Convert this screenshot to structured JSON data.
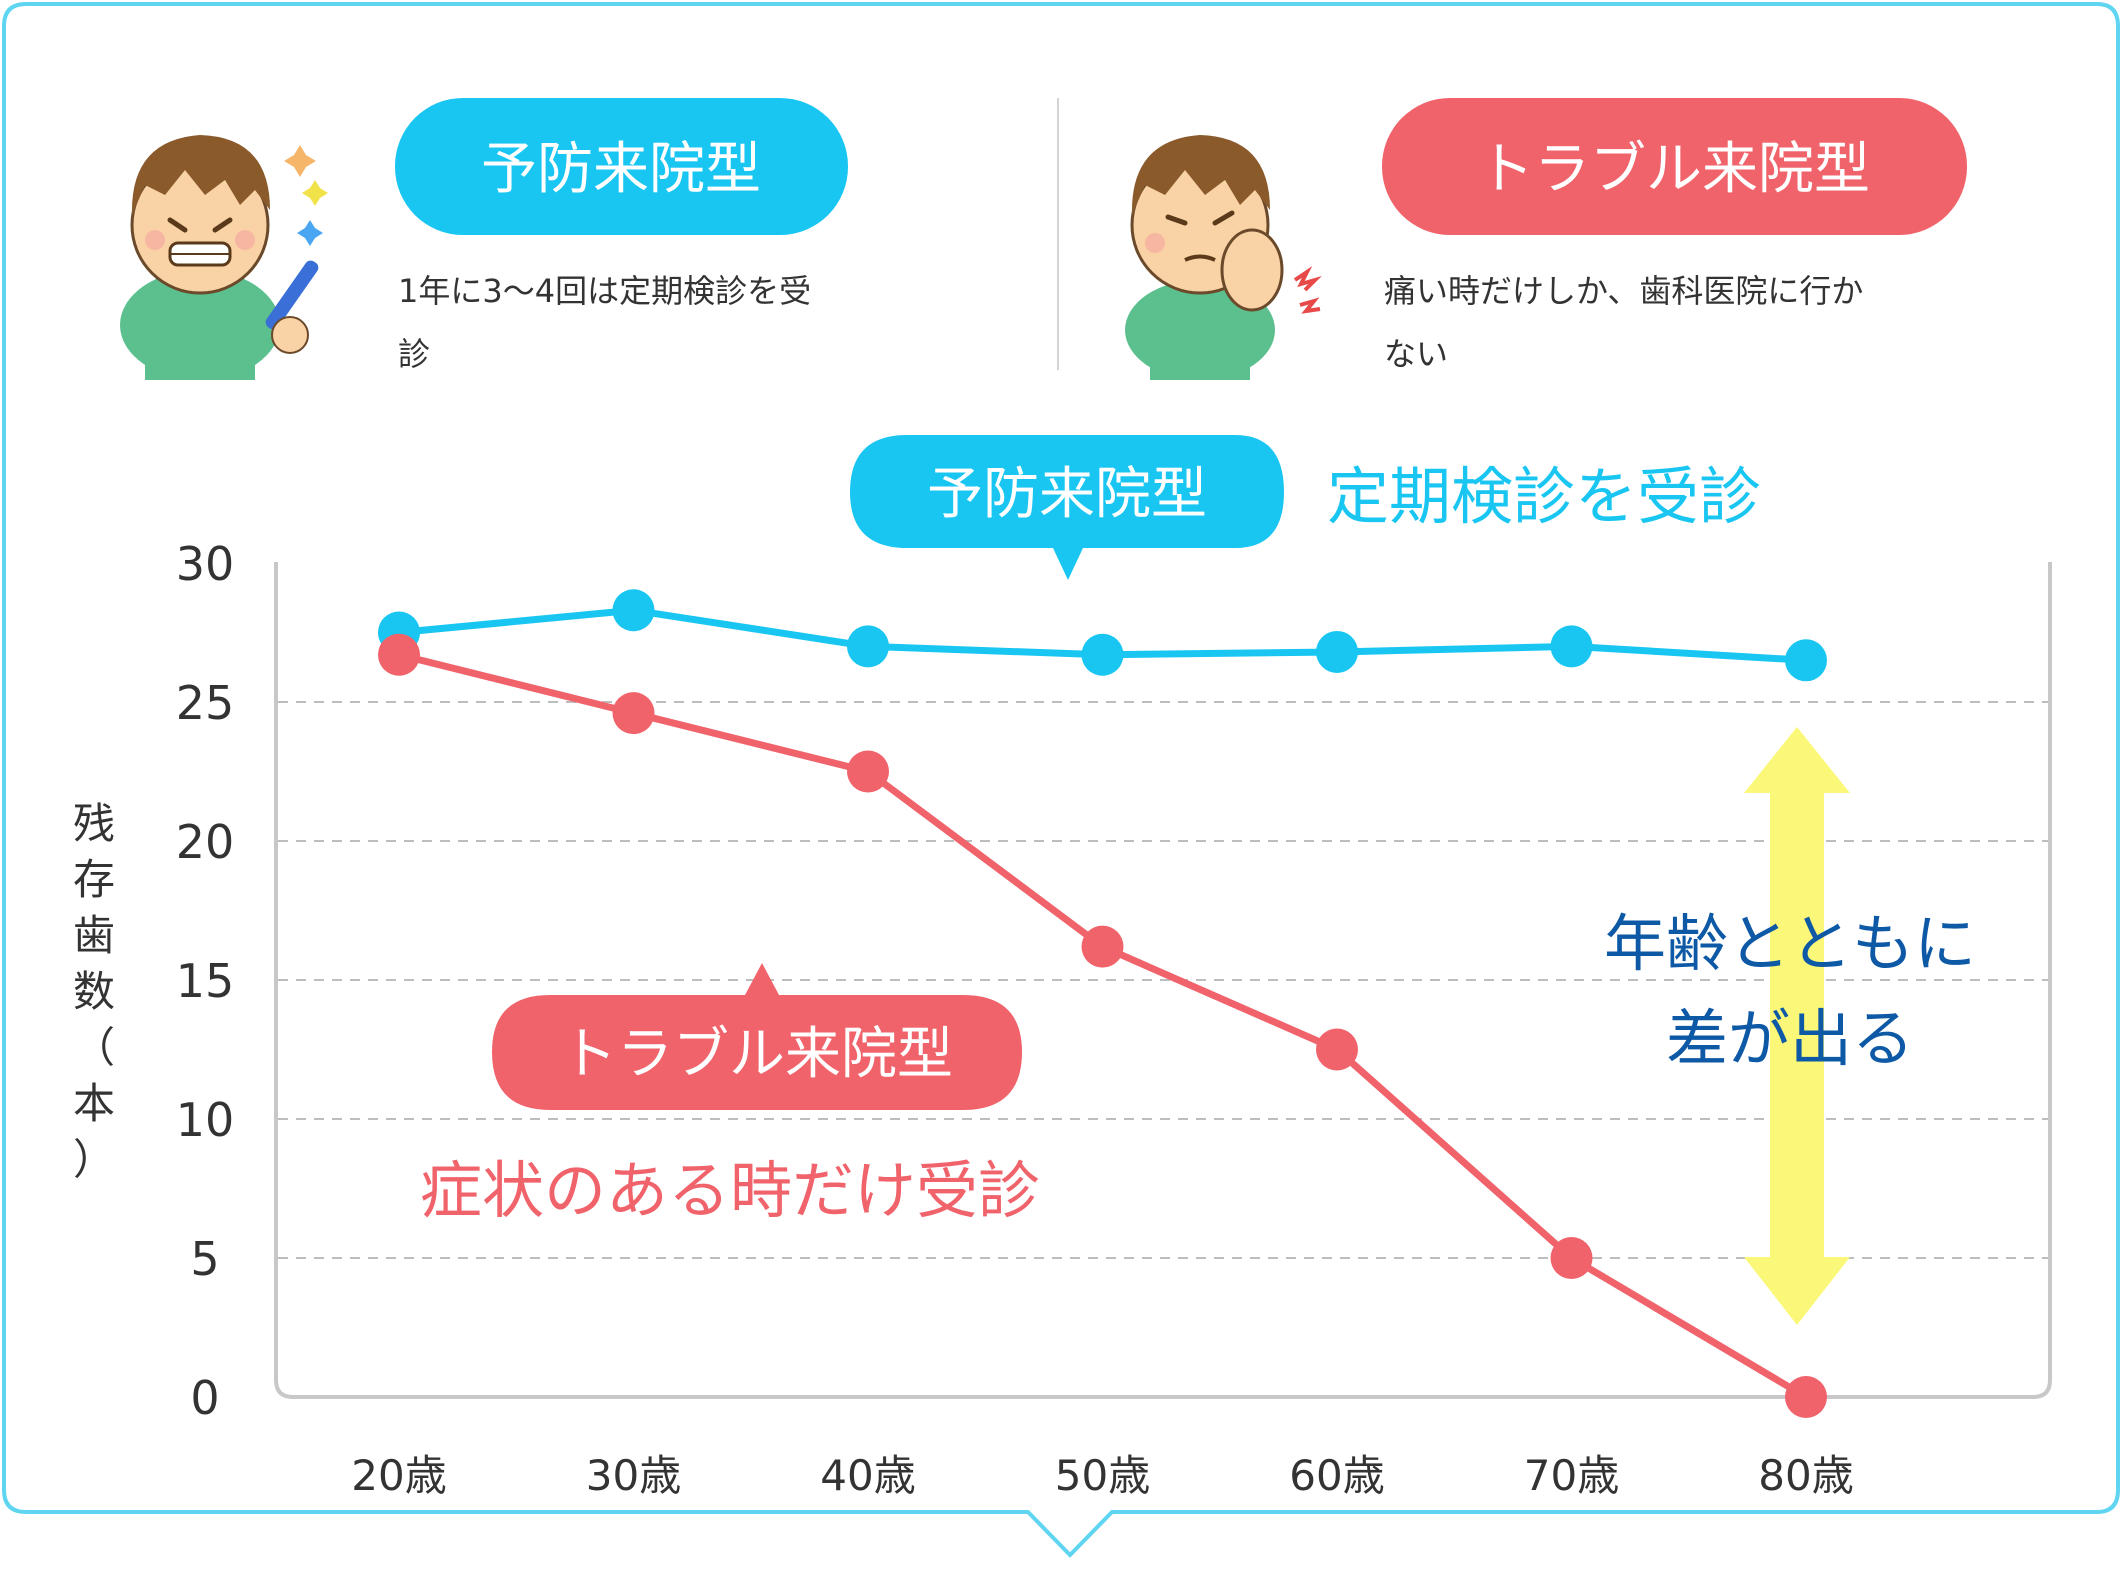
{
  "colors": {
    "prevent": "#19c6f2",
    "trouble": "#f0636b",
    "frame": "#5fd5f1",
    "axis": "#c8c8c8",
    "grid": "#bdbdbd",
    "text": "#333333",
    "note": "#0d59a6",
    "arrow": "#fbf879"
  },
  "header": {
    "prevent": {
      "badge": "予防来院型",
      "desc_line1": "1年に3～4回は定期検診を受",
      "desc_line2": "診",
      "illustration": "smiling-boy-with-toothbrush-icon"
    },
    "trouble": {
      "badge": "トラブル来院型",
      "desc_line1": "痛い時だけしか、歯科医院に行か",
      "desc_line2": "ない",
      "illustration": "boy-with-toothache-icon"
    }
  },
  "callouts": {
    "prevent_badge": "予防来院型",
    "prevent_caption": "定期検診を受診",
    "trouble_badge": "トラブル来院型",
    "trouble_caption": "症状のある時だけ受診",
    "gap_line1": "年齢とともに",
    "gap_line2": "差が出る"
  },
  "chart_data": {
    "type": "line",
    "ylabel": "残存歯数（本）",
    "ylim": [
      0,
      30
    ],
    "yticks": [
      "30",
      "25",
      "20",
      "15",
      "10",
      "5",
      "0"
    ],
    "grid": "dashed horizontal",
    "categories": [
      "20歳",
      "30歳",
      "40歳",
      "50歳",
      "60歳",
      "70歳",
      "80歳"
    ],
    "series": [
      {
        "name": "予防来院型",
        "color": "#19c6f2",
        "values": [
          27.5,
          28.3,
          27.0,
          26.7,
          26.8,
          27.0,
          26.5
        ]
      },
      {
        "name": "トラブル来院型",
        "color": "#f0636b",
        "values": [
          26.7,
          24.6,
          22.5,
          16.2,
          12.5,
          5.0,
          0.0
        ]
      }
    ]
  }
}
